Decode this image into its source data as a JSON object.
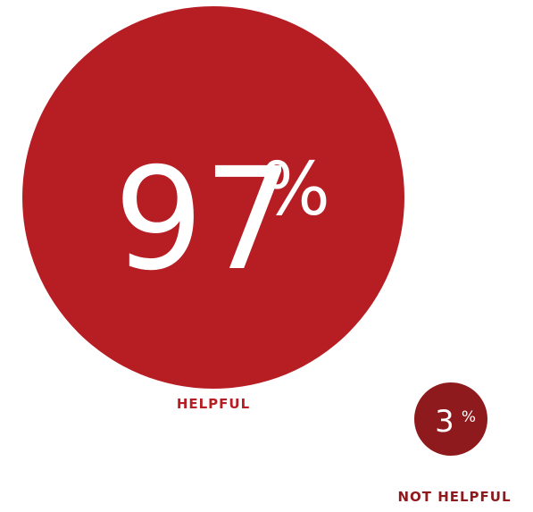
{
  "chart_data": {
    "type": "bubble",
    "title": "",
    "unit": "%",
    "series": [
      {
        "label": "HELPFUL",
        "value": 97,
        "color": "#b71e24"
      },
      {
        "label": "NOT HELPFUL",
        "value": 3,
        "color": "#8e1a1d"
      }
    ]
  }
}
